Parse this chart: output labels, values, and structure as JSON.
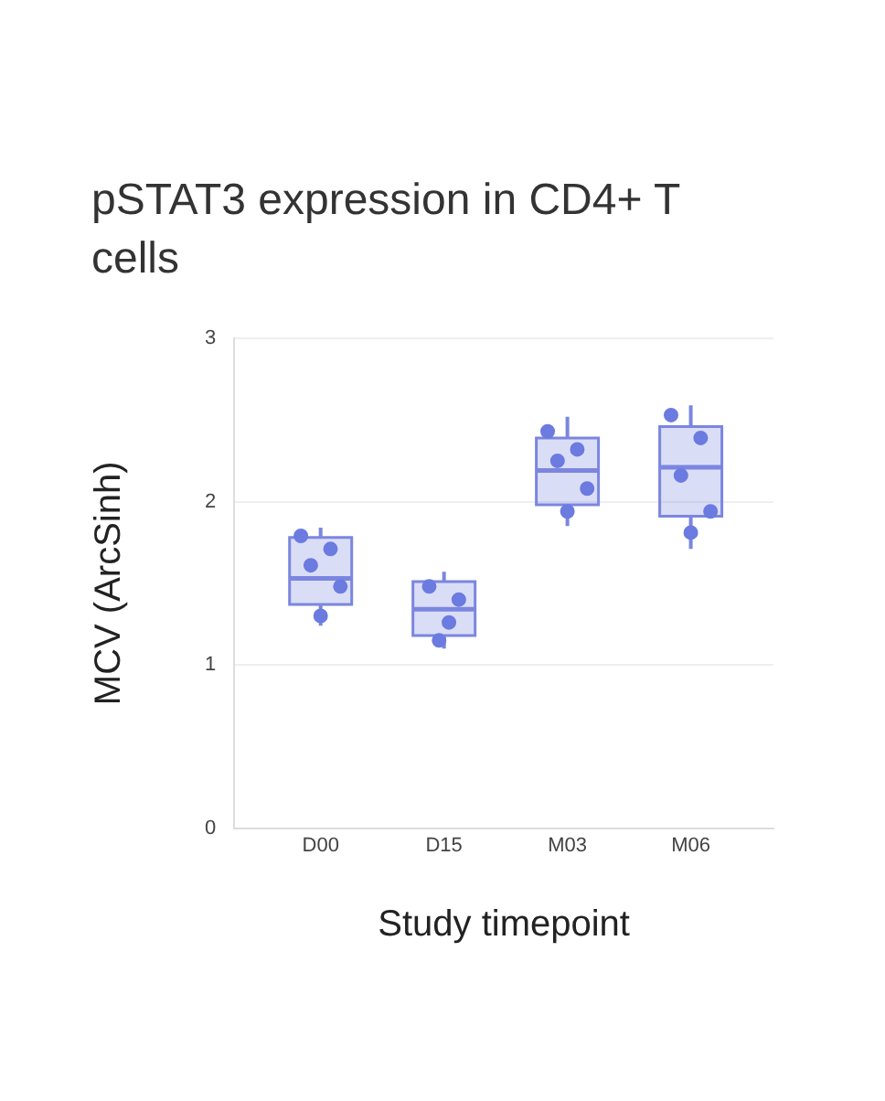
{
  "chart_data": {
    "type": "box",
    "title": "pSTAT3 expression in CD4+ T cells",
    "xlabel": "Study timepoint",
    "ylabel": "MCV (ArcSinh)",
    "categories": [
      "D00",
      "D15",
      "M03",
      "M06"
    ],
    "ylim": [
      0,
      3
    ],
    "yticks": [
      0,
      1,
      2,
      3
    ],
    "grid": "y",
    "legend": false,
    "series": [
      {
        "type": "box",
        "color": "#7b86e0",
        "boxes": [
          {
            "low": 1.24,
            "q1": 1.37,
            "median": 1.53,
            "q3": 1.78,
            "high": 1.84
          },
          {
            "low": 1.1,
            "q1": 1.18,
            "median": 1.34,
            "q3": 1.51,
            "high": 1.57
          },
          {
            "low": 1.85,
            "q1": 1.98,
            "median": 2.19,
            "q3": 2.39,
            "high": 2.52
          },
          {
            "low": 1.71,
            "q1": 1.91,
            "median": 2.21,
            "q3": 2.46,
            "high": 2.59
          }
        ]
      },
      {
        "type": "scatter",
        "color": "#6b7be0",
        "marker": "circle",
        "x": [
          "D00",
          "D00",
          "D00",
          "D00",
          "D00",
          "D15",
          "D15",
          "D15",
          "D15",
          "M03",
          "M03",
          "M03",
          "M03",
          "M03",
          "M06",
          "M06",
          "M06",
          "M06",
          "M06"
        ],
        "values": [
          1.79,
          1.71,
          1.61,
          1.48,
          1.3,
          1.48,
          1.4,
          1.26,
          1.15,
          2.43,
          2.32,
          2.25,
          2.08,
          1.94,
          2.53,
          2.39,
          2.16,
          1.94,
          1.81
        ]
      }
    ]
  }
}
